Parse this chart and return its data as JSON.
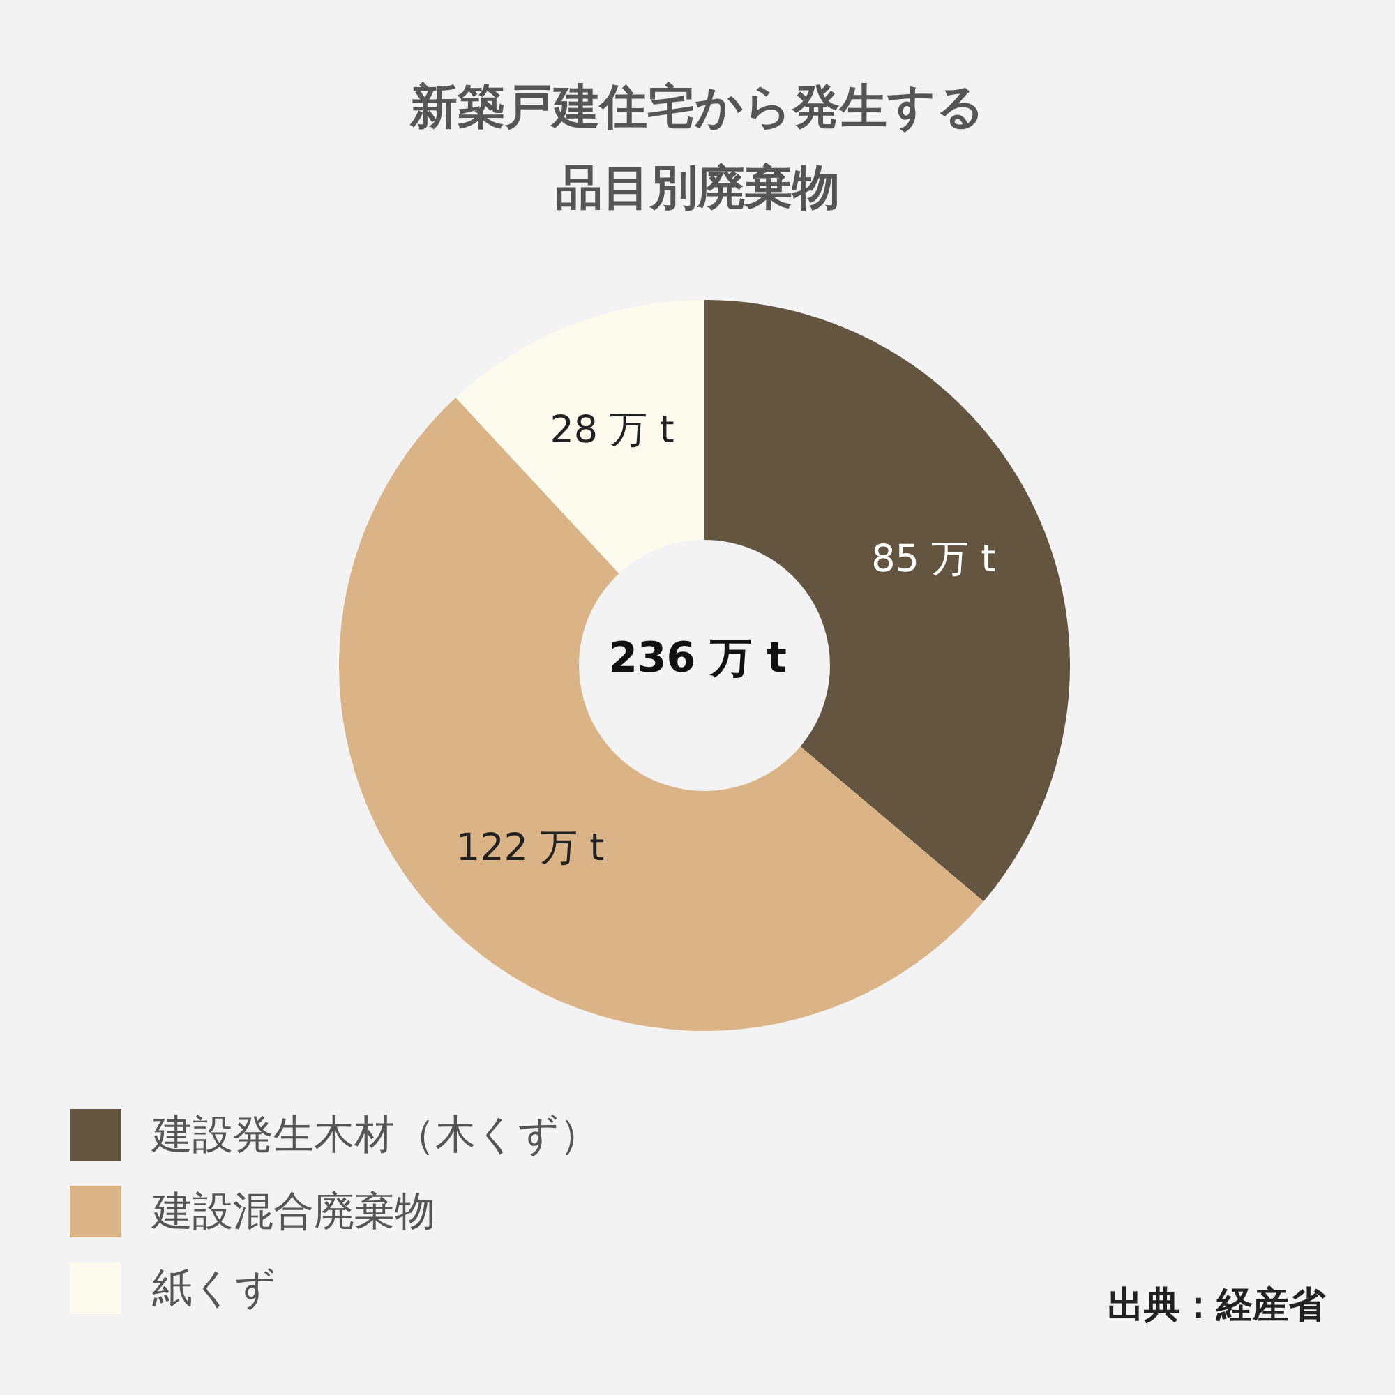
{
  "chart_data": {
    "type": "donut",
    "title": "新築戸建住宅から発生する品目別廃棄物",
    "categories": [
      "建設発生木材（木くず）",
      "建設混合廃棄物",
      "紙くず"
    ],
    "values": [
      85,
      122,
      28
    ],
    "colors": [
      "#63553f",
      "#dab486",
      "#fdfbee"
    ],
    "value_labels": [
      "85 万 t",
      "122 万 t",
      "28 万 t"
    ],
    "annotations": [
      "236 万 t",
      "出典：経産省"
    ],
    "legend": "bottom left"
  }
}
